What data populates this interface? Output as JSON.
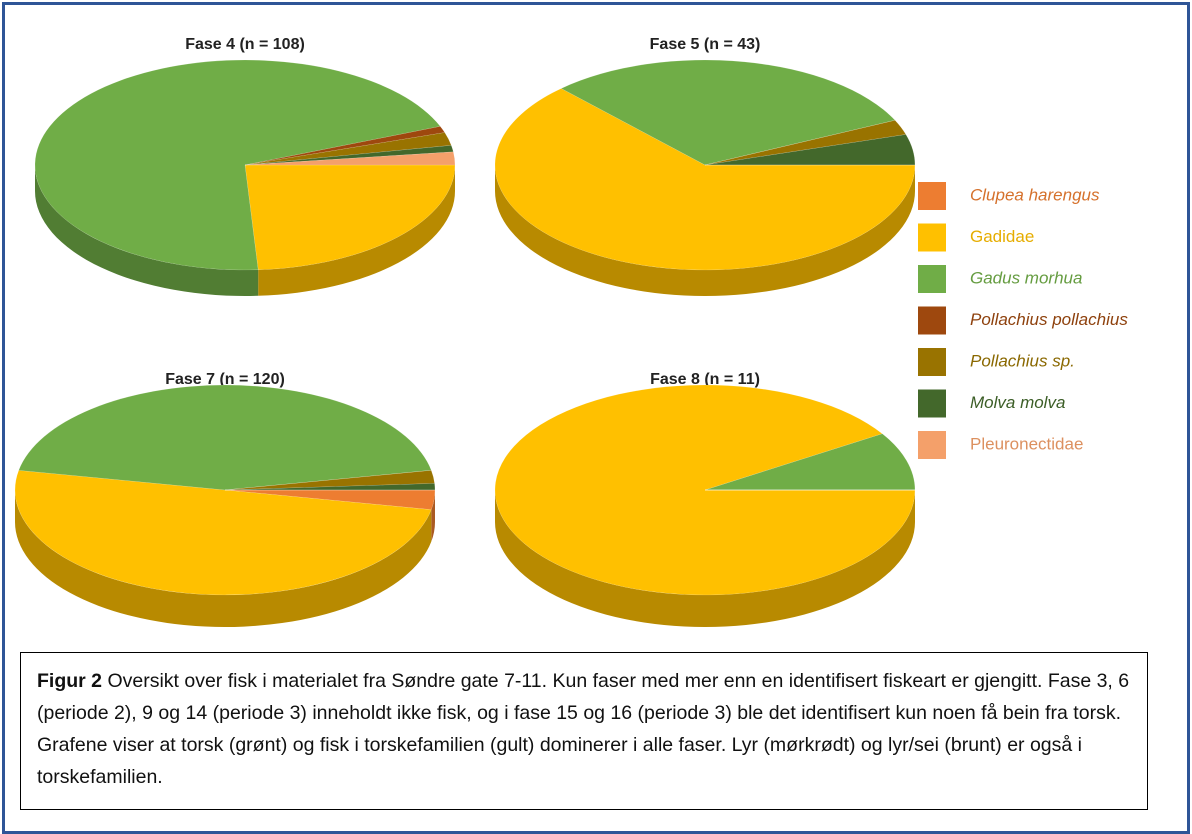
{
  "chart_data": [
    {
      "type": "pie",
      "title": "Fase 4 (n = 108)",
      "values": [
        0,
        24,
        70,
        1,
        2,
        1,
        2
      ]
    },
    {
      "type": "pie",
      "title": "Fase 5 (n = 43)",
      "values": [
        0,
        63,
        30,
        0,
        2.3,
        4.7,
        0
      ]
    },
    {
      "type": "pie",
      "title": "Fase 7 (n = 120)",
      "values": [
        3,
        50,
        44,
        0,
        2,
        1,
        0
      ]
    },
    {
      "type": "pie",
      "title": "Fase 8 (n = 11)",
      "values": [
        0,
        91,
        9,
        0,
        0,
        0,
        0
      ]
    }
  ],
  "legend": {
    "categories": [
      "Clupea harengus",
      "Gadidae",
      "Gadus morhua",
      "Pollachius pollachius",
      "Pollachius sp.",
      "Molva molva",
      "Pleuronectidae"
    ],
    "colors": [
      "#ed7d31",
      "#ffc000",
      "#70ad47",
      "#9e480e",
      "#997300",
      "#43682b",
      "#f4a06a"
    ],
    "italic": [
      true,
      false,
      true,
      true,
      true,
      true,
      false
    ]
  },
  "caption": {
    "label": "Figur 2",
    "text": "Oversikt over fisk i materialet fra Søndre gate 7-11. Kun faser med mer enn en identifisert fiskeart er gjengitt. Fase 3, 6 (periode 2), 9 og 14 (periode 3) inneholdt ikke fisk, og i fase 15 og 16 (periode 3) ble det identifisert kun noen få bein fra torsk. Grafene viser at torsk (grønt) og fisk i torskefamilien (gult) dominerer i alle faser. Lyr (mørkrødt) og lyr/sei (brunt) er også i torskefamilien."
  }
}
